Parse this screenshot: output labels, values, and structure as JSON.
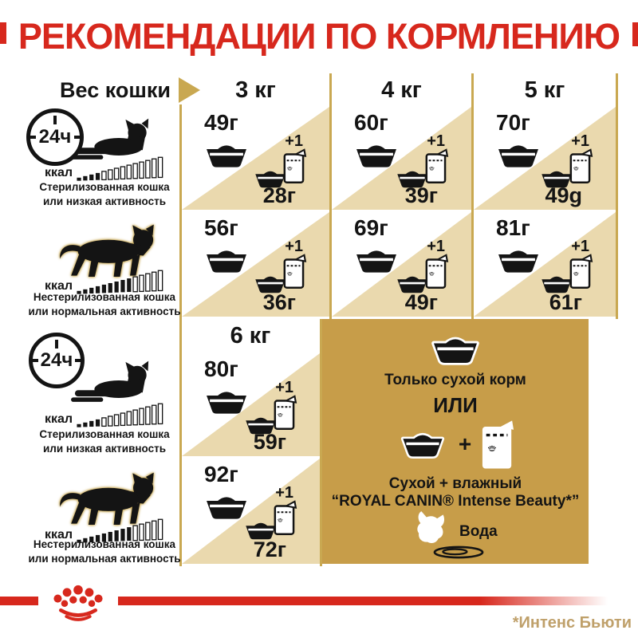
{
  "title": "РЕКОМЕНДАЦИИ ПО КОРМЛЕНИЮ",
  "header": {
    "weight_label": "Вес кошки",
    "col_3kg": "3 кг",
    "col_4kg": "4 кг",
    "col_5kg": "5 кг",
    "col_6kg": "6 кг"
  },
  "row_types": {
    "sterilized": {
      "clock": "24ч",
      "kcal": "ккал",
      "line1": "Стерилизованная кошка",
      "line2": "или низкая активность"
    },
    "normal": {
      "kcal": "ккал",
      "line1": "Нестерилизованная кошка",
      "line2": "или нормальная активность"
    }
  },
  "cells": {
    "w3_sterilized": {
      "dry": "49г",
      "plus": "+1",
      "wet": "28г"
    },
    "w4_sterilized": {
      "dry": "60г",
      "plus": "+1",
      "wet": "39г"
    },
    "w5_sterilized": {
      "dry": "70г",
      "plus": "+1",
      "wet": "49g"
    },
    "w3_normal": {
      "dry": "56г",
      "plus": "+1",
      "wet": "36г"
    },
    "w4_normal": {
      "dry": "69г",
      "plus": "+1",
      "wet": "49г"
    },
    "w5_normal": {
      "dry": "81г",
      "plus": "+1",
      "wet": "61г"
    },
    "w6_sterilized": {
      "dry": "80г",
      "plus": "+1",
      "wet": "59г"
    },
    "w6_normal": {
      "dry": "92г",
      "plus": "+1",
      "wet": "72г"
    }
  },
  "info_panel": {
    "dry_only": "Только сухой корм",
    "or": "ИЛИ",
    "plus": "+",
    "mixed_line1": "Сухой + влажный",
    "mixed_line2": "“ROYAL CANIN® Intense Beauty*”",
    "water": "Вода"
  },
  "footer": {
    "note": "*Интенс Бьюти"
  },
  "colors": {
    "red": "#d7281d",
    "gold_line": "#c9a851",
    "cell_beige": "#ead9ae",
    "panel_gold": "#c79d49",
    "note_gold": "#bfa06a"
  }
}
